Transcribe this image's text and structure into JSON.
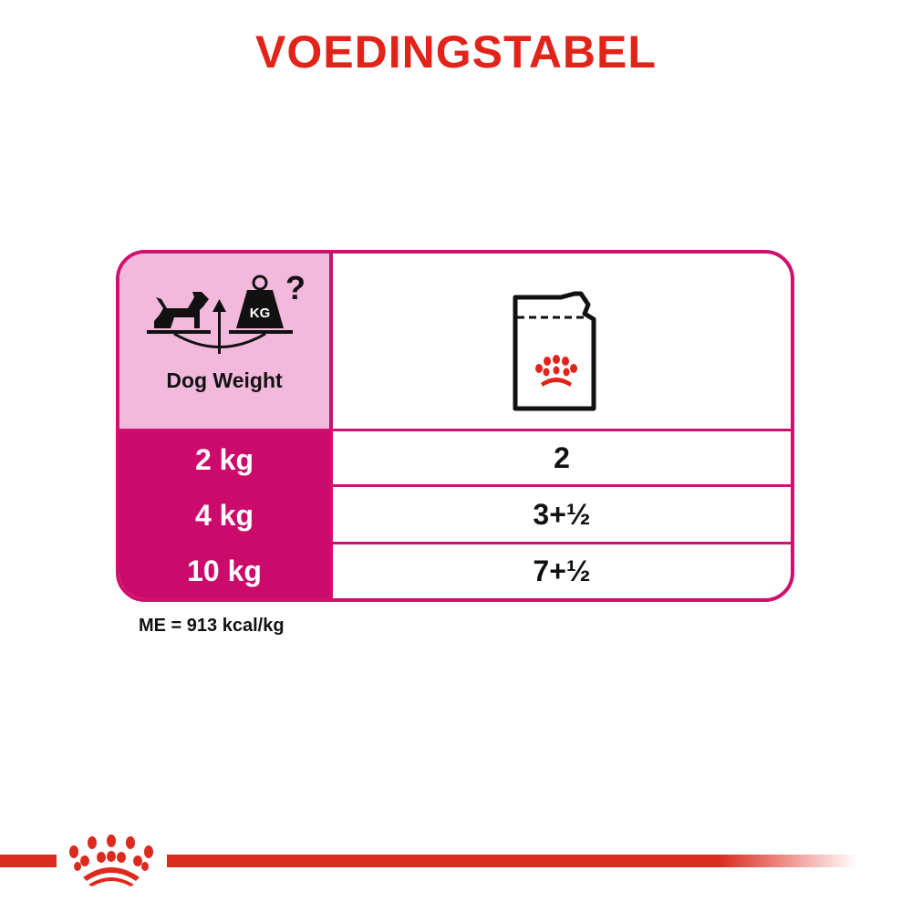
{
  "title": "VOEDINGSTABEL",
  "table": {
    "header": {
      "left_label": "Dog Weight",
      "left_icon": "dog-weight-scale-icon",
      "right_icon": "pouch-icon",
      "icon_text": "KG"
    },
    "rows": [
      {
        "weight": "2 kg",
        "amount": "2"
      },
      {
        "weight": "4 kg",
        "amount": "3+½"
      },
      {
        "weight": "10 kg",
        "amount": "7+½"
      }
    ]
  },
  "footnote": "ME = 913 kcal/kg",
  "colors": {
    "title": "#e2231a",
    "magenta": "#cc0a6c",
    "pink": "#f3b9dd",
    "brand_red": "#dd2a1f"
  }
}
